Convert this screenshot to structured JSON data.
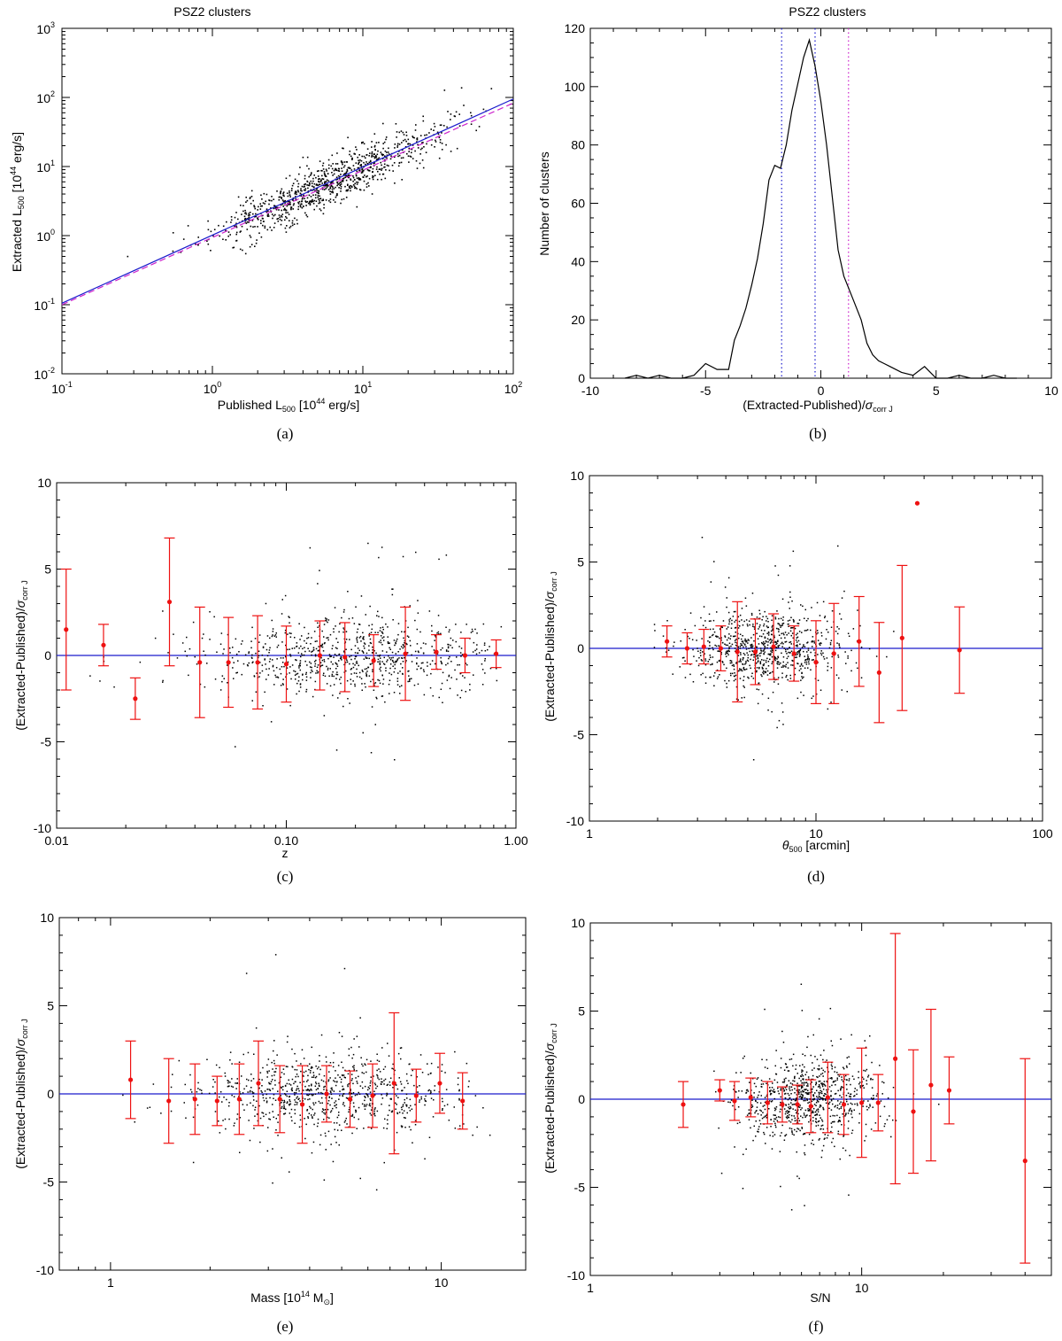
{
  "colors": {
    "axis": "#000000",
    "points": "#000000",
    "binned": "#ee1111",
    "fit": "#1a1acc",
    "fit_alt": "#cc22cc",
    "zero": "#1a1acc"
  },
  "chart_data": [
    {
      "panel": "a",
      "type": "scatter",
      "caption": "(a)",
      "title": "PSZ2 clusters",
      "xlabel": "Published L",
      "xlabel_sub": "500",
      "xlabel_tail": " [10",
      "xlabel_sup": "44",
      "xlabel_end": " erg/s]",
      "ylabel": "Extracted L",
      "ylabel_sub": "500",
      "ylabel_tail": " [10",
      "ylabel_sup": "44",
      "ylabel_end": " erg/s]",
      "xscale": "log",
      "yscale": "log",
      "xlim": [
        0.1,
        100
      ],
      "ylim": [
        0.01,
        1000
      ],
      "xtick_exponents": [
        -1,
        0,
        1,
        2
      ],
      "ytick_exponents": [
        -2,
        -1,
        0,
        1,
        2,
        3
      ],
      "n_points": 950,
      "lines": [
        {
          "name": "fit",
          "style": "solid",
          "color": "#1a1acc",
          "x": [
            0.1,
            100
          ],
          "y": [
            0.105,
            95
          ]
        },
        {
          "name": "one-to-one",
          "style": "dashed",
          "color": "#cc22cc",
          "x": [
            0.1,
            100
          ],
          "y": [
            0.1,
            83
          ]
        }
      ]
    },
    {
      "panel": "b",
      "type": "line",
      "caption": "(b)",
      "title": "PSZ2 clusters",
      "xlabel": "(Extracted-Published)/",
      "xlabel_sym": "σ",
      "xlabel_sub": "corr J",
      "ylabel": "Number of clusters",
      "xlim": [
        -10,
        10
      ],
      "ylim": [
        0,
        120
      ],
      "xticks": [
        -10,
        -5,
        0,
        5,
        10
      ],
      "yticks": [
        0,
        20,
        40,
        60,
        80,
        100,
        120
      ],
      "series": [
        {
          "name": "histogram",
          "x": [
            -8.5,
            -8,
            -7.5,
            -7,
            -6.5,
            -6,
            -5.5,
            -5,
            -4.5,
            -4,
            -3.75,
            -3.5,
            -3.25,
            -3,
            -2.75,
            -2.5,
            -2.25,
            -2,
            -1.75,
            -1.5,
            -1.25,
            -1,
            -0.75,
            -0.5,
            -0.25,
            0,
            0.25,
            0.5,
            0.75,
            1,
            1.25,
            1.5,
            1.75,
            2,
            2.25,
            2.5,
            2.75,
            3,
            3.5,
            4,
            4.5,
            5,
            5.5,
            6,
            6.5,
            7,
            7.5,
            8,
            8.5
          ],
          "y": [
            0,
            1,
            0,
            1,
            0,
            0,
            1,
            5,
            3,
            3,
            13,
            18,
            24,
            32,
            41,
            53,
            68,
            73,
            72,
            80,
            92,
            101,
            110,
            116,
            107,
            95,
            80,
            62,
            44,
            35,
            30,
            25,
            20,
            12,
            8,
            6,
            5,
            4,
            2,
            1,
            4,
            0,
            0,
            1,
            0,
            0,
            1,
            0,
            0
          ]
        }
      ],
      "vlines": [
        {
          "x": -1.7,
          "style": "dotted",
          "color": "#1a1acc"
        },
        {
          "x": -0.25,
          "style": "dotted",
          "color": "#1a1acc"
        },
        {
          "x": 1.2,
          "style": "dotted",
          "color": "#cc22cc"
        }
      ]
    },
    {
      "panel": "c",
      "type": "scatter",
      "caption": "(c)",
      "xlabel": "z",
      "ylabel": "(Extracted-Published)/",
      "ylabel_sym": "σ",
      "ylabel_sub": "corr J",
      "xscale": "log",
      "xlim": [
        0.01,
        1.0
      ],
      "ylim": [
        -10,
        10
      ],
      "xticks": [
        0.01,
        0.1,
        1.0
      ],
      "xtick_labels": [
        "0.01",
        "0.10",
        "1.00"
      ],
      "yticks": [
        -10,
        -5,
        0,
        5,
        10
      ],
      "n_points": 850,
      "binned": {
        "x": [
          0.011,
          0.016,
          0.022,
          0.031,
          0.042,
          0.056,
          0.075,
          0.1,
          0.14,
          0.18,
          0.24,
          0.33,
          0.45,
          0.6,
          0.82
        ],
        "y": [
          1.5,
          0.6,
          -2.5,
          3.1,
          -0.4,
          -0.4,
          -0.4,
          -0.5,
          0.0,
          -0.1,
          -0.3,
          0.1,
          0.2,
          0.0,
          0.1
        ],
        "err": [
          3.5,
          1.2,
          1.2,
          3.7,
          3.2,
          2.6,
          2.7,
          2.2,
          2.0,
          2.0,
          1.5,
          2.7,
          1.0,
          1.0,
          0.8
        ]
      }
    },
    {
      "panel": "d",
      "type": "scatter",
      "caption": "(d)",
      "xlabel": "θ",
      "xlabel_sub": "500",
      "xlabel_tail": " [arcmin]",
      "ylabel": "(Extracted-Published)/",
      "ylabel_sym": "σ",
      "ylabel_sub": "corr J",
      "xscale": "log",
      "xlim": [
        1,
        100
      ],
      "ylim": [
        -10,
        10
      ],
      "xticks": [
        1,
        10,
        100
      ],
      "xtick_labels": [
        "1",
        "10",
        "100"
      ],
      "yticks": [
        -10,
        -5,
        0,
        5,
        10
      ],
      "n_points": 850,
      "binned": {
        "x": [
          2.2,
          2.7,
          3.2,
          3.8,
          4.5,
          5.4,
          6.5,
          8.0,
          10.0,
          12.0,
          15.5,
          19.0,
          24.0,
          28.0,
          43.0
        ],
        "y": [
          0.4,
          0.0,
          0.1,
          0.0,
          -0.2,
          -0.2,
          0.1,
          -0.3,
          -0.8,
          -0.3,
          0.4,
          -1.4,
          0.6,
          8.4,
          -0.1
        ],
        "err": [
          0.9,
          0.9,
          1.0,
          1.3,
          2.9,
          1.9,
          1.9,
          1.6,
          2.4,
          2.9,
          2.6,
          2.9,
          4.2,
          0.0,
          2.5
        ]
      }
    },
    {
      "panel": "e",
      "type": "scatter",
      "caption": "(e)",
      "xlabel": "Mass [10",
      "xlabel_sup": "14",
      "xlabel_tail": " M",
      "xlabel_sub": "⊙",
      "xlabel_end": "]",
      "ylabel": "(Extracted-Published)/",
      "ylabel_sym": "σ",
      "ylabel_sub": "corr J",
      "xscale": "log",
      "xlim": [
        0.7,
        18
      ],
      "ylim": [
        -10,
        10
      ],
      "xticks": [
        1,
        10
      ],
      "xtick_labels": [
        "1",
        "10"
      ],
      "yticks": [
        -10,
        -5,
        0,
        5,
        10
      ],
      "n_points": 850,
      "binned": {
        "x": [
          1.15,
          1.5,
          1.8,
          2.1,
          2.45,
          2.8,
          3.25,
          3.8,
          4.5,
          5.3,
          6.2,
          7.2,
          8.4,
          9.9,
          11.6
        ],
        "y": [
          0.8,
          -0.4,
          -0.3,
          -0.4,
          -0.3,
          0.6,
          -0.3,
          -0.6,
          0.0,
          -0.3,
          -0.1,
          0.6,
          -0.1,
          0.6,
          -0.4
        ],
        "err": [
          2.2,
          2.4,
          2.0,
          1.4,
          2.0,
          2.4,
          1.9,
          2.2,
          1.6,
          1.6,
          1.8,
          4.0,
          1.5,
          1.7,
          1.6
        ]
      }
    },
    {
      "panel": "f",
      "type": "scatter",
      "caption": "(f)",
      "xlabel": "S/N",
      "ylabel": "(Extracted-Published)/",
      "ylabel_sym": "σ",
      "ylabel_sub": "corr J",
      "xscale": "log",
      "xlim": [
        1,
        50
      ],
      "ylim": [
        -10,
        10
      ],
      "xticks": [
        1,
        10
      ],
      "xtick_labels": [
        "1",
        "10"
      ],
      "yticks": [
        -10,
        -5,
        0,
        5,
        10
      ],
      "n_points": 850,
      "binned": {
        "x": [
          2.2,
          3.0,
          3.4,
          3.9,
          4.5,
          5.1,
          5.8,
          6.5,
          7.5,
          8.6,
          10.0,
          11.5,
          13.3,
          15.5,
          18.0,
          21.0,
          40.0
        ],
        "y": [
          -0.3,
          0.5,
          -0.1,
          0.1,
          -0.2,
          -0.3,
          -0.3,
          -0.4,
          0.1,
          -0.3,
          -0.2,
          -0.2,
          2.3,
          -0.7,
          0.8,
          0.5,
          -3.5
        ],
        "err": [
          1.3,
          0.6,
          1.1,
          1.1,
          1.2,
          1.0,
          1.1,
          1.5,
          2.0,
          1.7,
          3.1,
          1.6,
          7.1,
          3.5,
          4.3,
          1.9,
          5.8
        ]
      }
    }
  ]
}
